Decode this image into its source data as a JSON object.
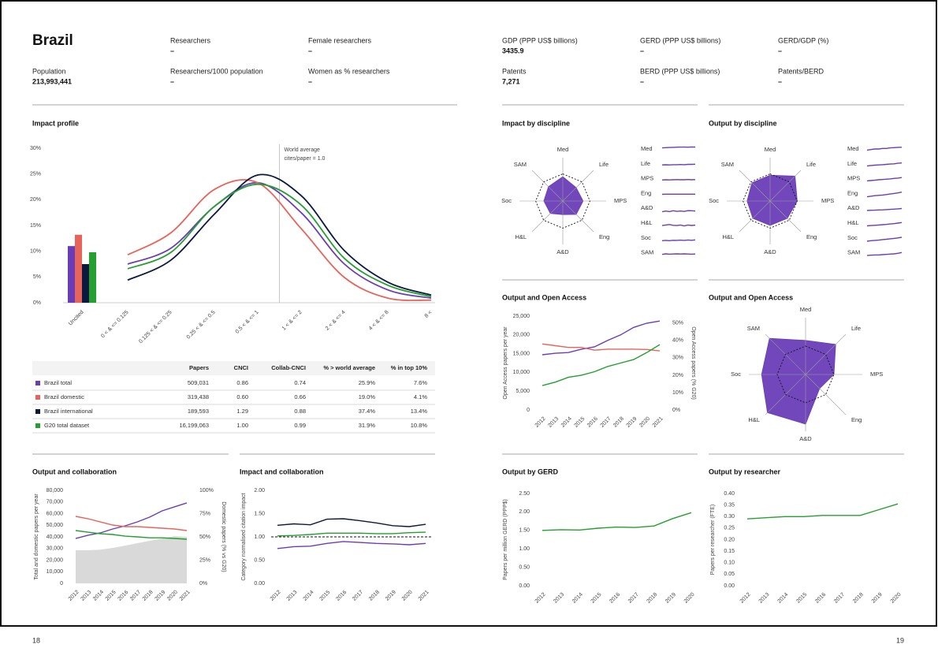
{
  "header": {
    "country": "Brazil",
    "fields": [
      {
        "label": "Researchers",
        "value": "–"
      },
      {
        "label": "Female researchers",
        "value": "–"
      },
      {
        "label": "GDP (PPP US$ billions)",
        "value": "3435.9"
      },
      {
        "label": "GERD (PPP US$ billions)",
        "value": "–"
      },
      {
        "label": "GERD/GDP (%)",
        "value": "–"
      },
      {
        "label": "Population",
        "value": "213,993,441"
      },
      {
        "label": "Researchers/1000 population",
        "value": "–"
      },
      {
        "label": "Women as % researchers",
        "value": "–"
      },
      {
        "label": "Patents",
        "value": "7,271"
      },
      {
        "label": "BERD (PPP US$ billions)",
        "value": "–"
      },
      {
        "label": "Patents/BERD",
        "value": "–"
      }
    ]
  },
  "table": {
    "columns": [
      "Papers",
      "CNCI",
      "Collab-CNCI",
      "% > world average",
      "% in top 10%"
    ],
    "rows": [
      [
        "509,031",
        "0.86",
        "0.74",
        "25.9%",
        "7.6%"
      ],
      [
        "319,438",
        "0.60",
        "0.66",
        "19.0%",
        "4.1%"
      ],
      [
        "189,593",
        "1.29",
        "0.88",
        "37.4%",
        "13.4%"
      ],
      [
        "16,199,063",
        "1.00",
        "0.99",
        "31.9%",
        "10.8%"
      ]
    ]
  },
  "chart_data": [
    {
      "type": "combo",
      "title": "Impact profile",
      "annotation": [
        "World average",
        "cites/paper = 1.0"
      ],
      "bar_categories": [
        "Uncited"
      ],
      "categories": [
        "0 < & <= 0.125",
        "0.125 < & <= 0.25",
        "0.25 < & <= 0.5",
        "0.5 < & <= 1",
        "1 < & <= 2",
        "2 < & <= 4",
        "4 < & <= 8",
        "8 <"
      ],
      "ylim": [
        0,
        30
      ],
      "yticks": [
        {
          "value": 0,
          "label": "0%"
        },
        {
          "value": 5,
          "label": "5%"
        },
        {
          "value": 10,
          "label": "10%"
        },
        {
          "value": 15,
          "label": "15%"
        },
        {
          "value": 20,
          "label": "20%"
        },
        {
          "value": 25,
          "label": "25%"
        },
        {
          "value": 30,
          "label": "30%"
        }
      ],
      "series": [
        {
          "name": "Brazil total",
          "color": "#6a3db8",
          "bar_value": 11,
          "values": [
            7.5,
            10.6,
            18.7,
            23.3,
            17.5,
            7.5,
            2.5,
            0.9
          ]
        },
        {
          "name": "Brazil domestic",
          "color": "#e8645a",
          "bar_value": 13.2,
          "values": [
            9.3,
            13.6,
            22,
            23.3,
            14.4,
            4.9,
            0.9,
            0.5
          ]
        },
        {
          "name": "Brazil international",
          "color": "#0b1840",
          "bar_value": 7.5,
          "values": [
            4.4,
            8.3,
            17.2,
            24.8,
            20.8,
            10.1,
            4,
            1.5
          ]
        },
        {
          "name": "G20 total dataset",
          "color": "#23a02f",
          "bar_value": 9.8,
          "values": [
            6.6,
            9.8,
            18.7,
            23,
            19,
            8.6,
            3.4,
            1.2
          ]
        }
      ]
    },
    {
      "type": "radar",
      "title": "Impact by discipline",
      "axes": [
        "Med",
        "Life",
        "MPS",
        "Eng",
        "A&D",
        "H&L",
        "Soc",
        "SAM"
      ],
      "rlim": [
        0,
        1.6
      ],
      "reference": 1,
      "series": [
        {
          "color": "#6a3db8",
          "values": [
            0.9,
            0.7,
            0.75,
            0.7,
            0.5,
            0.65,
            0.7,
            0.75
          ]
        }
      ],
      "trend_ylim": [
        0.4,
        1.2
      ],
      "trends": [
        [
          0.88,
          0.9,
          0.91,
          0.92,
          0.93,
          0.94,
          0.94,
          0.93,
          0.95,
          0.94
        ],
        [
          0.72,
          0.73,
          0.72,
          0.74,
          0.74,
          0.75,
          0.74,
          0.76,
          0.76,
          0.77
        ],
        [
          0.7,
          0.72,
          0.71,
          0.72,
          0.73,
          0.72,
          0.72,
          0.74,
          0.72,
          0.73
        ],
        [
          0.74,
          0.75,
          0.75,
          0.75,
          0.75,
          0.75,
          0.75,
          0.75,
          0.75,
          0.75
        ],
        [
          0.55,
          0.6,
          0.56,
          0.62,
          0.58,
          0.6,
          0.57,
          0.63,
          0.62,
          0.6
        ],
        [
          0.62,
          0.66,
          0.7,
          0.64,
          0.62,
          0.66,
          0.6,
          0.66,
          0.63,
          0.65
        ],
        [
          0.6,
          0.62,
          0.6,
          0.63,
          0.62,
          0.64,
          0.62,
          0.65,
          0.63,
          0.66
        ],
        [
          0.68,
          0.72,
          0.7,
          0.71,
          0.72,
          0.71,
          0.72,
          0.71,
          0.7,
          0.71
        ]
      ]
    },
    {
      "type": "radar",
      "title": "Output by discipline",
      "axes": [
        "Med",
        "Life",
        "MPS",
        "Eng",
        "A&D",
        "H&L",
        "Soc",
        "SAM"
      ],
      "rlim": [
        0,
        1.6
      ],
      "reference": 1,
      "series": [
        {
          "color": "#6a3db8",
          "values": [
            0.95,
            1.3,
            1,
            0.9,
            0.9,
            0.9,
            0.85,
            0.95
          ]
        }
      ],
      "trend_ylim": [
        0,
        1
      ],
      "trends": [
        [
          0.4,
          0.45,
          0.5,
          0.5,
          0.55,
          0.55,
          0.6,
          0.62,
          0.65,
          0.66
        ],
        [
          0.3,
          0.35,
          0.38,
          0.4,
          0.42,
          0.45,
          0.48,
          0.5,
          0.55,
          0.58
        ],
        [
          0.3,
          0.33,
          0.36,
          0.4,
          0.42,
          0.45,
          0.48,
          0.52,
          0.55,
          0.6
        ],
        [
          0.2,
          0.25,
          0.3,
          0.33,
          0.36,
          0.4,
          0.45,
          0.5,
          0.55,
          0.62
        ],
        [
          0.3,
          0.32,
          0.33,
          0.35,
          0.36,
          0.38,
          0.4,
          0.42,
          0.45,
          0.48
        ],
        [
          0.25,
          0.28,
          0.3,
          0.33,
          0.36,
          0.38,
          0.42,
          0.45,
          0.5,
          0.55
        ],
        [
          0.2,
          0.25,
          0.28,
          0.3,
          0.35,
          0.38,
          0.42,
          0.46,
          0.5,
          0.56
        ],
        [
          0.25,
          0.28,
          0.3,
          0.3,
          0.33,
          0.35,
          0.38,
          0.4,
          0.45,
          0.52
        ]
      ]
    },
    {
      "type": "line",
      "title": "Output and Open Access",
      "y_label": "Open Access papers per year",
      "y2_label": "Open Access papers (% G20)",
      "x": [
        2012,
        2013,
        2014,
        2015,
        2016,
        2017,
        2018,
        2019,
        2020,
        2021
      ],
      "xlim": [
        2012,
        2021
      ],
      "ylim": [
        0,
        25000
      ],
      "yticks": [
        0,
        {
          "value": 5000,
          "label": "5,000"
        },
        {
          "value": 10000,
          "label": "10,000"
        },
        {
          "value": 15000,
          "label": "15,000"
        },
        {
          "value": 20000,
          "label": "20,000"
        },
        {
          "value": 25000,
          "label": "25,000"
        }
      ],
      "y2lim": [
        0,
        54
      ],
      "y2ticks": [
        {
          "value": 0,
          "label": "0%"
        },
        {
          "value": 10,
          "label": "10%"
        },
        {
          "value": 20,
          "label": "20%"
        },
        {
          "value": 30,
          "label": "30%"
        },
        {
          "value": 40,
          "label": "40%"
        },
        {
          "value": 50,
          "label": "50%"
        }
      ],
      "series": [
        {
          "color": "#6a3db8",
          "values": [
            14700,
            15100,
            15300,
            16200,
            16800,
            18500,
            20000,
            22000,
            23100,
            23700
          ]
        },
        {
          "color": "#e8645a",
          "axis": "y2",
          "values": [
            38,
            37,
            36,
            36,
            34.4,
            35,
            35,
            35,
            34.8,
            34
          ]
        },
        {
          "color": "#23a02f",
          "axis": "y2",
          "values": [
            14,
            16,
            18.8,
            20,
            22,
            25,
            27,
            29,
            33,
            37.6
          ]
        }
      ]
    },
    {
      "type": "radar",
      "title": "Output and Open Access",
      "axes": [
        "Med",
        "Life",
        "MPS",
        "Eng",
        "A&D",
        "H&L",
        "Soc",
        "SAM"
      ],
      "rlim": [
        0,
        2
      ],
      "reference": 1,
      "series": [
        {
          "color": "#6a3db8",
          "values": [
            1.2,
            1.5,
            1,
            0.7,
            1.75,
            1.9,
            1.55,
            1.8
          ]
        }
      ]
    },
    {
      "type": "line",
      "title": "Output and collaboration",
      "y_label": "Total and domestic papers per year",
      "y2_label": "Domestic papers (% vs G20)",
      "x": [
        2012,
        2013,
        2014,
        2015,
        2016,
        2017,
        2018,
        2019,
        2020,
        2021
      ],
      "xlim": [
        2012,
        2021
      ],
      "ylim": [
        0,
        80000
      ],
      "yticks": [
        0,
        {
          "value": 10000,
          "label": "10,000"
        },
        {
          "value": 20000,
          "label": "20,000"
        },
        {
          "value": 30000,
          "label": "30,000"
        },
        {
          "value": 40000,
          "label": "40,000"
        },
        {
          "value": 50000,
          "label": "50,000"
        },
        {
          "value": 60000,
          "label": "60,000"
        },
        {
          "value": 70000,
          "label": "70,000"
        },
        {
          "value": 80000,
          "label": "80,000"
        }
      ],
      "y2lim": [
        0,
        100
      ],
      "y2ticks": [
        {
          "value": 0,
          "label": "0%"
        },
        {
          "value": 25,
          "label": "25%"
        },
        {
          "value": 50,
          "label": "50%"
        },
        {
          "value": 75,
          "label": "75%"
        },
        {
          "value": 100,
          "label": "100%"
        }
      ],
      "series": [
        {
          "color": "#d9d9d9",
          "area": true,
          "values": [
            28500,
            28500,
            29000,
            30500,
            32500,
            34600,
            36600,
            38600,
            40700,
            40000
          ]
        },
        {
          "color": "#6a3db8",
          "values": [
            38600,
            41400,
            43400,
            46800,
            49500,
            52900,
            57000,
            62400,
            65800,
            69200
          ]
        },
        {
          "color": "#e8645a",
          "axis": "y2",
          "values": [
            72,
            69.5,
            66,
            62.7,
            61,
            61,
            60.2,
            59.3,
            58.5,
            56.8
          ]
        },
        {
          "color": "#23a02f",
          "axis": "y2",
          "values": [
            56.8,
            55,
            53.4,
            52.5,
            50.8,
            50,
            49,
            49,
            48.3,
            47.5
          ]
        }
      ]
    },
    {
      "type": "line",
      "title": "Impact and collaboration",
      "y_label": "Category normalised citation impact",
      "x": [
        2012,
        2013,
        2014,
        2015,
        2016,
        2017,
        2018,
        2019,
        2020,
        2021
      ],
      "xlim": [
        2012,
        2021
      ],
      "ylim": [
        0,
        2
      ],
      "reference": 1,
      "yticks": [
        {
          "value": 0,
          "label": "0.00"
        },
        {
          "value": 0.5,
          "label": "0.50"
        },
        {
          "value": 1,
          "label": "1.00"
        },
        {
          "value": 1.5,
          "label": "1.50"
        },
        {
          "value": 2,
          "label": "2.00"
        }
      ],
      "series": [
        {
          "color": "#0b1840",
          "values": [
            1.25,
            1.28,
            1.26,
            1.38,
            1.39,
            1.35,
            1.3,
            1.24,
            1.22,
            1.27
          ]
        },
        {
          "color": "#6a3db8",
          "values": [
            0.75,
            0.79,
            0.8,
            0.86,
            0.9,
            0.88,
            0.86,
            0.85,
            0.83,
            0.86
          ]
        },
        {
          "color": "#23a02f",
          "values": [
            1.02,
            1.03,
            1.05,
            1.08,
            1.08,
            1.08,
            1.07,
            1.07,
            1.09,
            1.1
          ]
        }
      ]
    },
    {
      "type": "line",
      "title": "Output by GERD",
      "y_label": "Papers per million GERD (PPP$)",
      "x": [
        2012,
        2013,
        2014,
        2015,
        2016,
        2017,
        2018,
        2019,
        2020
      ],
      "xlim": [
        2012,
        2020
      ],
      "ylim": [
        0,
        2.5
      ],
      "yticks": [
        {
          "value": 0,
          "label": "0.00"
        },
        {
          "value": 0.5,
          "label": "0.50"
        },
        {
          "value": 1,
          "label": "1.00"
        },
        {
          "value": 1.5,
          "label": "1.50"
        },
        {
          "value": 2,
          "label": "2.00"
        },
        {
          "value": 2.5,
          "label": "2.50"
        }
      ],
      "series": [
        {
          "color": "#23a02f",
          "values": [
            1.5,
            1.52,
            1.51,
            1.56,
            1.59,
            1.58,
            1.62,
            1.82,
            1.98
          ]
        }
      ]
    },
    {
      "type": "line",
      "title": "Output by researcher",
      "y_label": "Papers per researcher (FTE)",
      "x": [
        2012,
        2013,
        2014,
        2015,
        2016,
        2017,
        2018,
        2019,
        2020
      ],
      "xlim": [
        2012,
        2020
      ],
      "ylim": [
        0,
        0.4
      ],
      "yticks": [
        {
          "value": 0,
          "label": "0.00"
        },
        {
          "value": 0.05,
          "label": "0.05"
        },
        {
          "value": 0.1,
          "label": "0.10"
        },
        {
          "value": 0.15,
          "label": "0.15"
        },
        {
          "value": 0.2,
          "label": "0.20"
        },
        {
          "value": 0.25,
          "label": "0.25"
        },
        {
          "value": 0.3,
          "label": "0.30"
        },
        {
          "value": 0.35,
          "label": "0.35"
        },
        {
          "value": 0.4,
          "label": "0.40"
        }
      ],
      "series": [
        {
          "color": "#23a02f",
          "values": [
            0.29,
            0.295,
            0.3,
            0.3,
            0.305,
            0.305,
            0.305,
            0.33,
            0.355
          ]
        }
      ]
    }
  ],
  "page_numbers": [
    "18",
    "19"
  ]
}
